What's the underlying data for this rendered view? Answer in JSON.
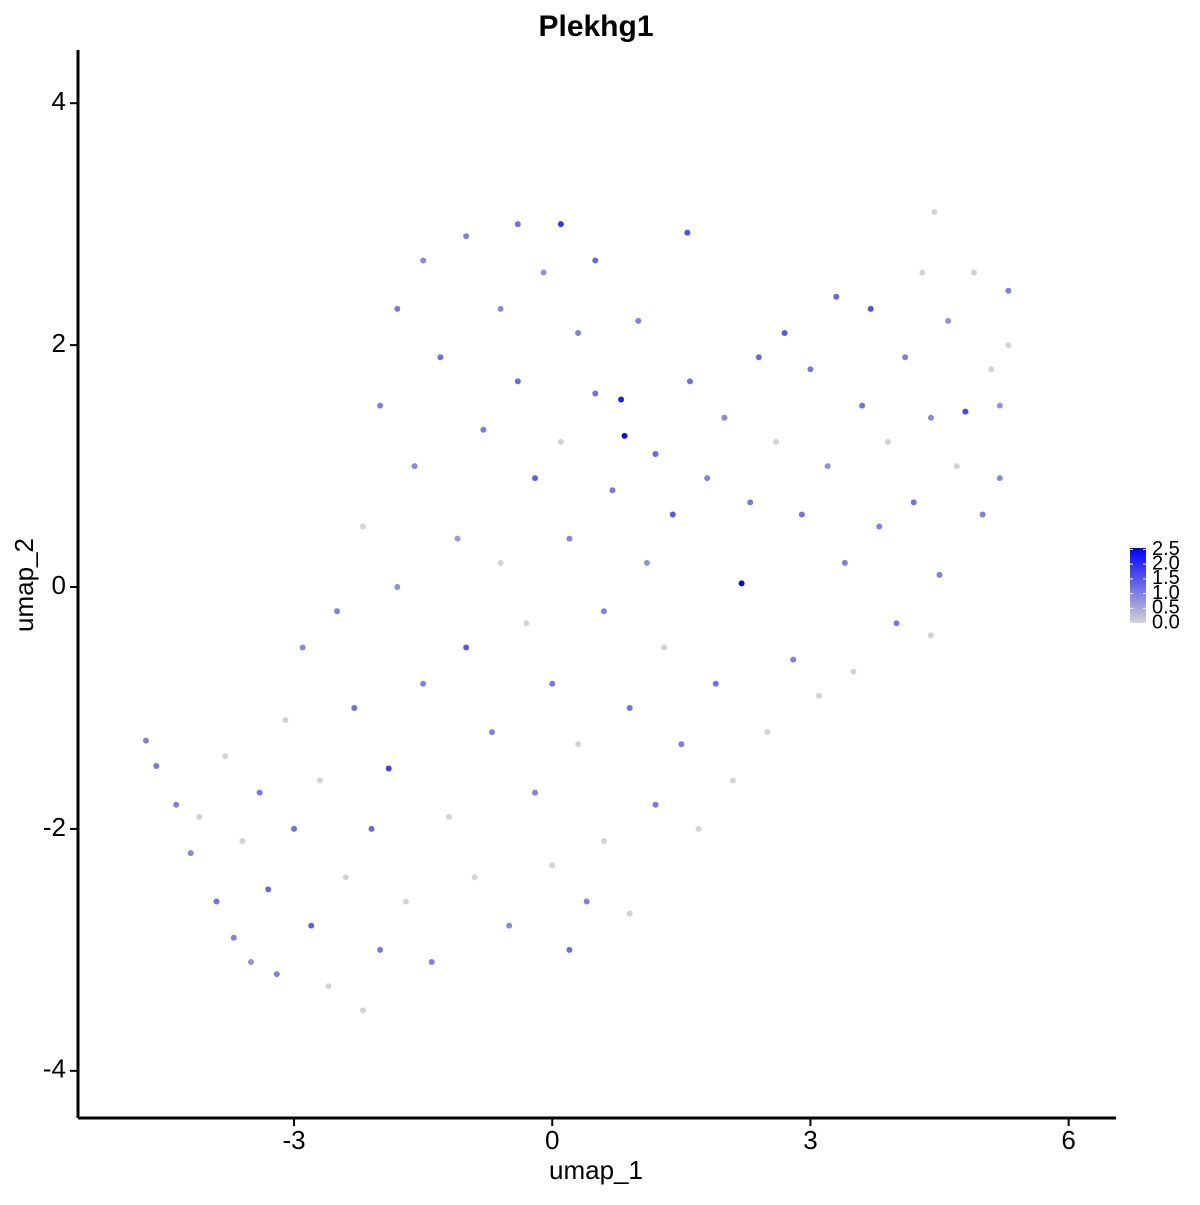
{
  "chart_data": {
    "type": "scatter",
    "title": "Plekhg1",
    "x_label": "umap_1",
    "y_label": "umap_2",
    "x": [
      -4.72,
      -4.6,
      -4.37,
      -4.2,
      -4.1,
      -3.9,
      -3.8,
      -3.7,
      -3.6,
      -3.5,
      -3.4,
      -3.3,
      -3.2,
      -3.1,
      -3.0,
      -2.9,
      -2.8,
      -2.7,
      -2.6,
      -2.5,
      -2.4,
      -2.3,
      -2.2,
      -2.2,
      -2.1,
      -2.0,
      -2.0,
      -1.9,
      -1.8,
      -1.8,
      -1.7,
      -1.6,
      -1.5,
      -1.5,
      -1.4,
      -1.3,
      -1.2,
      -1.1,
      -1.0,
      -1.0,
      -0.9,
      -0.8,
      -0.7,
      -0.6,
      -0.6,
      -0.5,
      -0.4,
      -0.4,
      -0.3,
      -0.2,
      -0.2,
      -0.1,
      0.0,
      0.0,
      0.1,
      0.1,
      0.2,
      0.2,
      0.3,
      0.3,
      0.4,
      0.5,
      0.5,
      0.6,
      0.6,
      0.7,
      0.8,
      0.84,
      0.9,
      0.9,
      1.0,
      1.1,
      1.2,
      1.2,
      1.3,
      1.4,
      1.5,
      1.57,
      1.6,
      1.7,
      1.8,
      1.9,
      2.0,
      2.1,
      2.2,
      2.3,
      2.4,
      2.5,
      2.6,
      2.7,
      2.8,
      2.9,
      3.0,
      3.1,
      3.2,
      3.3,
      3.4,
      3.5,
      3.6,
      3.7,
      3.8,
      3.9,
      4.0,
      4.1,
      4.2,
      4.3,
      4.4,
      4.44,
      4.5,
      4.6,
      4.7,
      4.8,
      4.9,
      5.0,
      5.1,
      5.2,
      5.3,
      5.3,
      5.2,
      4.4
    ],
    "y": [
      -1.27,
      -1.48,
      -1.8,
      -2.2,
      -1.9,
      -2.6,
      -1.4,
      -2.9,
      -2.1,
      -3.1,
      -1.7,
      -2.5,
      -3.2,
      -1.1,
      -2.0,
      -0.5,
      -2.8,
      -1.6,
      -3.3,
      -0.2,
      -2.4,
      -1.0,
      -3.5,
      0.5,
      -2.0,
      1.5,
      -3.0,
      -1.5,
      2.3,
      0.0,
      -2.6,
      1.0,
      -0.8,
      2.7,
      -3.1,
      1.9,
      -1.9,
      0.4,
      2.9,
      -0.5,
      -2.4,
      1.3,
      -1.2,
      2.3,
      0.2,
      -2.8,
      3.0,
      1.7,
      -0.3,
      -1.7,
      0.9,
      2.6,
      -2.3,
      -0.8,
      1.2,
      3.0,
      -3.0,
      0.4,
      2.1,
      -1.3,
      -2.6,
      1.6,
      2.7,
      -0.2,
      -2.1,
      0.8,
      1.55,
      1.25,
      -1.0,
      -2.7,
      2.2,
      0.2,
      -1.8,
      1.1,
      -0.5,
      0.6,
      -1.3,
      2.93,
      1.7,
      -2.0,
      0.9,
      -0.8,
      1.4,
      -1.6,
      0.03,
      0.7,
      1.9,
      -1.2,
      1.2,
      2.1,
      -0.6,
      0.6,
      1.8,
      -0.9,
      1.0,
      2.4,
      0.2,
      -0.7,
      1.5,
      2.3,
      0.5,
      1.2,
      -0.3,
      1.9,
      0.7,
      2.6,
      1.4,
      3.1,
      0.1,
      2.2,
      1.0,
      1.45,
      2.6,
      0.6,
      1.8,
      0.9,
      2.45,
      2.0,
      1.5,
      -0.4
    ],
    "values": [
      1.0,
      1.1,
      1.0,
      0.9,
      0,
      1.2,
      0,
      1.0,
      0,
      0.8,
      1.1,
      1.3,
      1.0,
      0,
      1.2,
      0.9,
      1.4,
      0,
      0,
      1.0,
      0,
      1.2,
      0,
      0,
      1.3,
      1.0,
      1.1,
      1.8,
      1.1,
      0.8,
      0,
      0.9,
      1.0,
      0.9,
      1.0,
      1.2,
      0,
      0.7,
      1.0,
      1.5,
      0,
      1.1,
      1.0,
      0.9,
      0,
      0.9,
      1.2,
      1.3,
      0,
      1.0,
      1.4,
      0.8,
      0,
      1.1,
      0,
      1.9,
      1.2,
      0.9,
      1.0,
      0,
      1.0,
      1.2,
      1.3,
      1.0,
      0,
      1.1,
      2.2,
      2.4,
      1.2,
      0,
      1.0,
      0.8,
      1.1,
      1.3,
      0,
      1.5,
      1.0,
      1.6,
      1.2,
      0,
      1.0,
      1.2,
      0.9,
      0,
      2.5,
      1.1,
      1.3,
      0,
      0,
      1.5,
      1.0,
      1.2,
      1.1,
      0,
      0.8,
      1.3,
      1.0,
      0,
      1.2,
      1.6,
      1.0,
      0,
      1.1,
      1.0,
      1.2,
      0,
      0.9,
      0,
      1.0,
      0.8,
      0,
      1.7,
      0,
      1.0,
      0,
      0.9,
      1.0,
      0,
      0.8,
      0
    ],
    "low_color": "#d3d3d3",
    "high_color": "#0000ff",
    "xlim": [
      -5.51,
      6.55
    ],
    "ylim": [
      -4.39,
      4.44
    ],
    "xticks": [
      -3,
      0,
      3,
      6
    ],
    "yticks": [
      -4,
      -2,
      0,
      2,
      4
    ],
    "color_lim": [
      0,
      2.55
    ],
    "color_ticks": [
      {
        "value": 0,
        "label": "0.0"
      },
      {
        "value": 0.5,
        "label": "0.5"
      },
      {
        "value": 1,
        "label": "1.0"
      },
      {
        "value": 1.5,
        "label": "1.5"
      },
      {
        "value": 2,
        "label": "2.0"
      },
      {
        "value": 2.5,
        "label": "2.5"
      }
    ]
  }
}
